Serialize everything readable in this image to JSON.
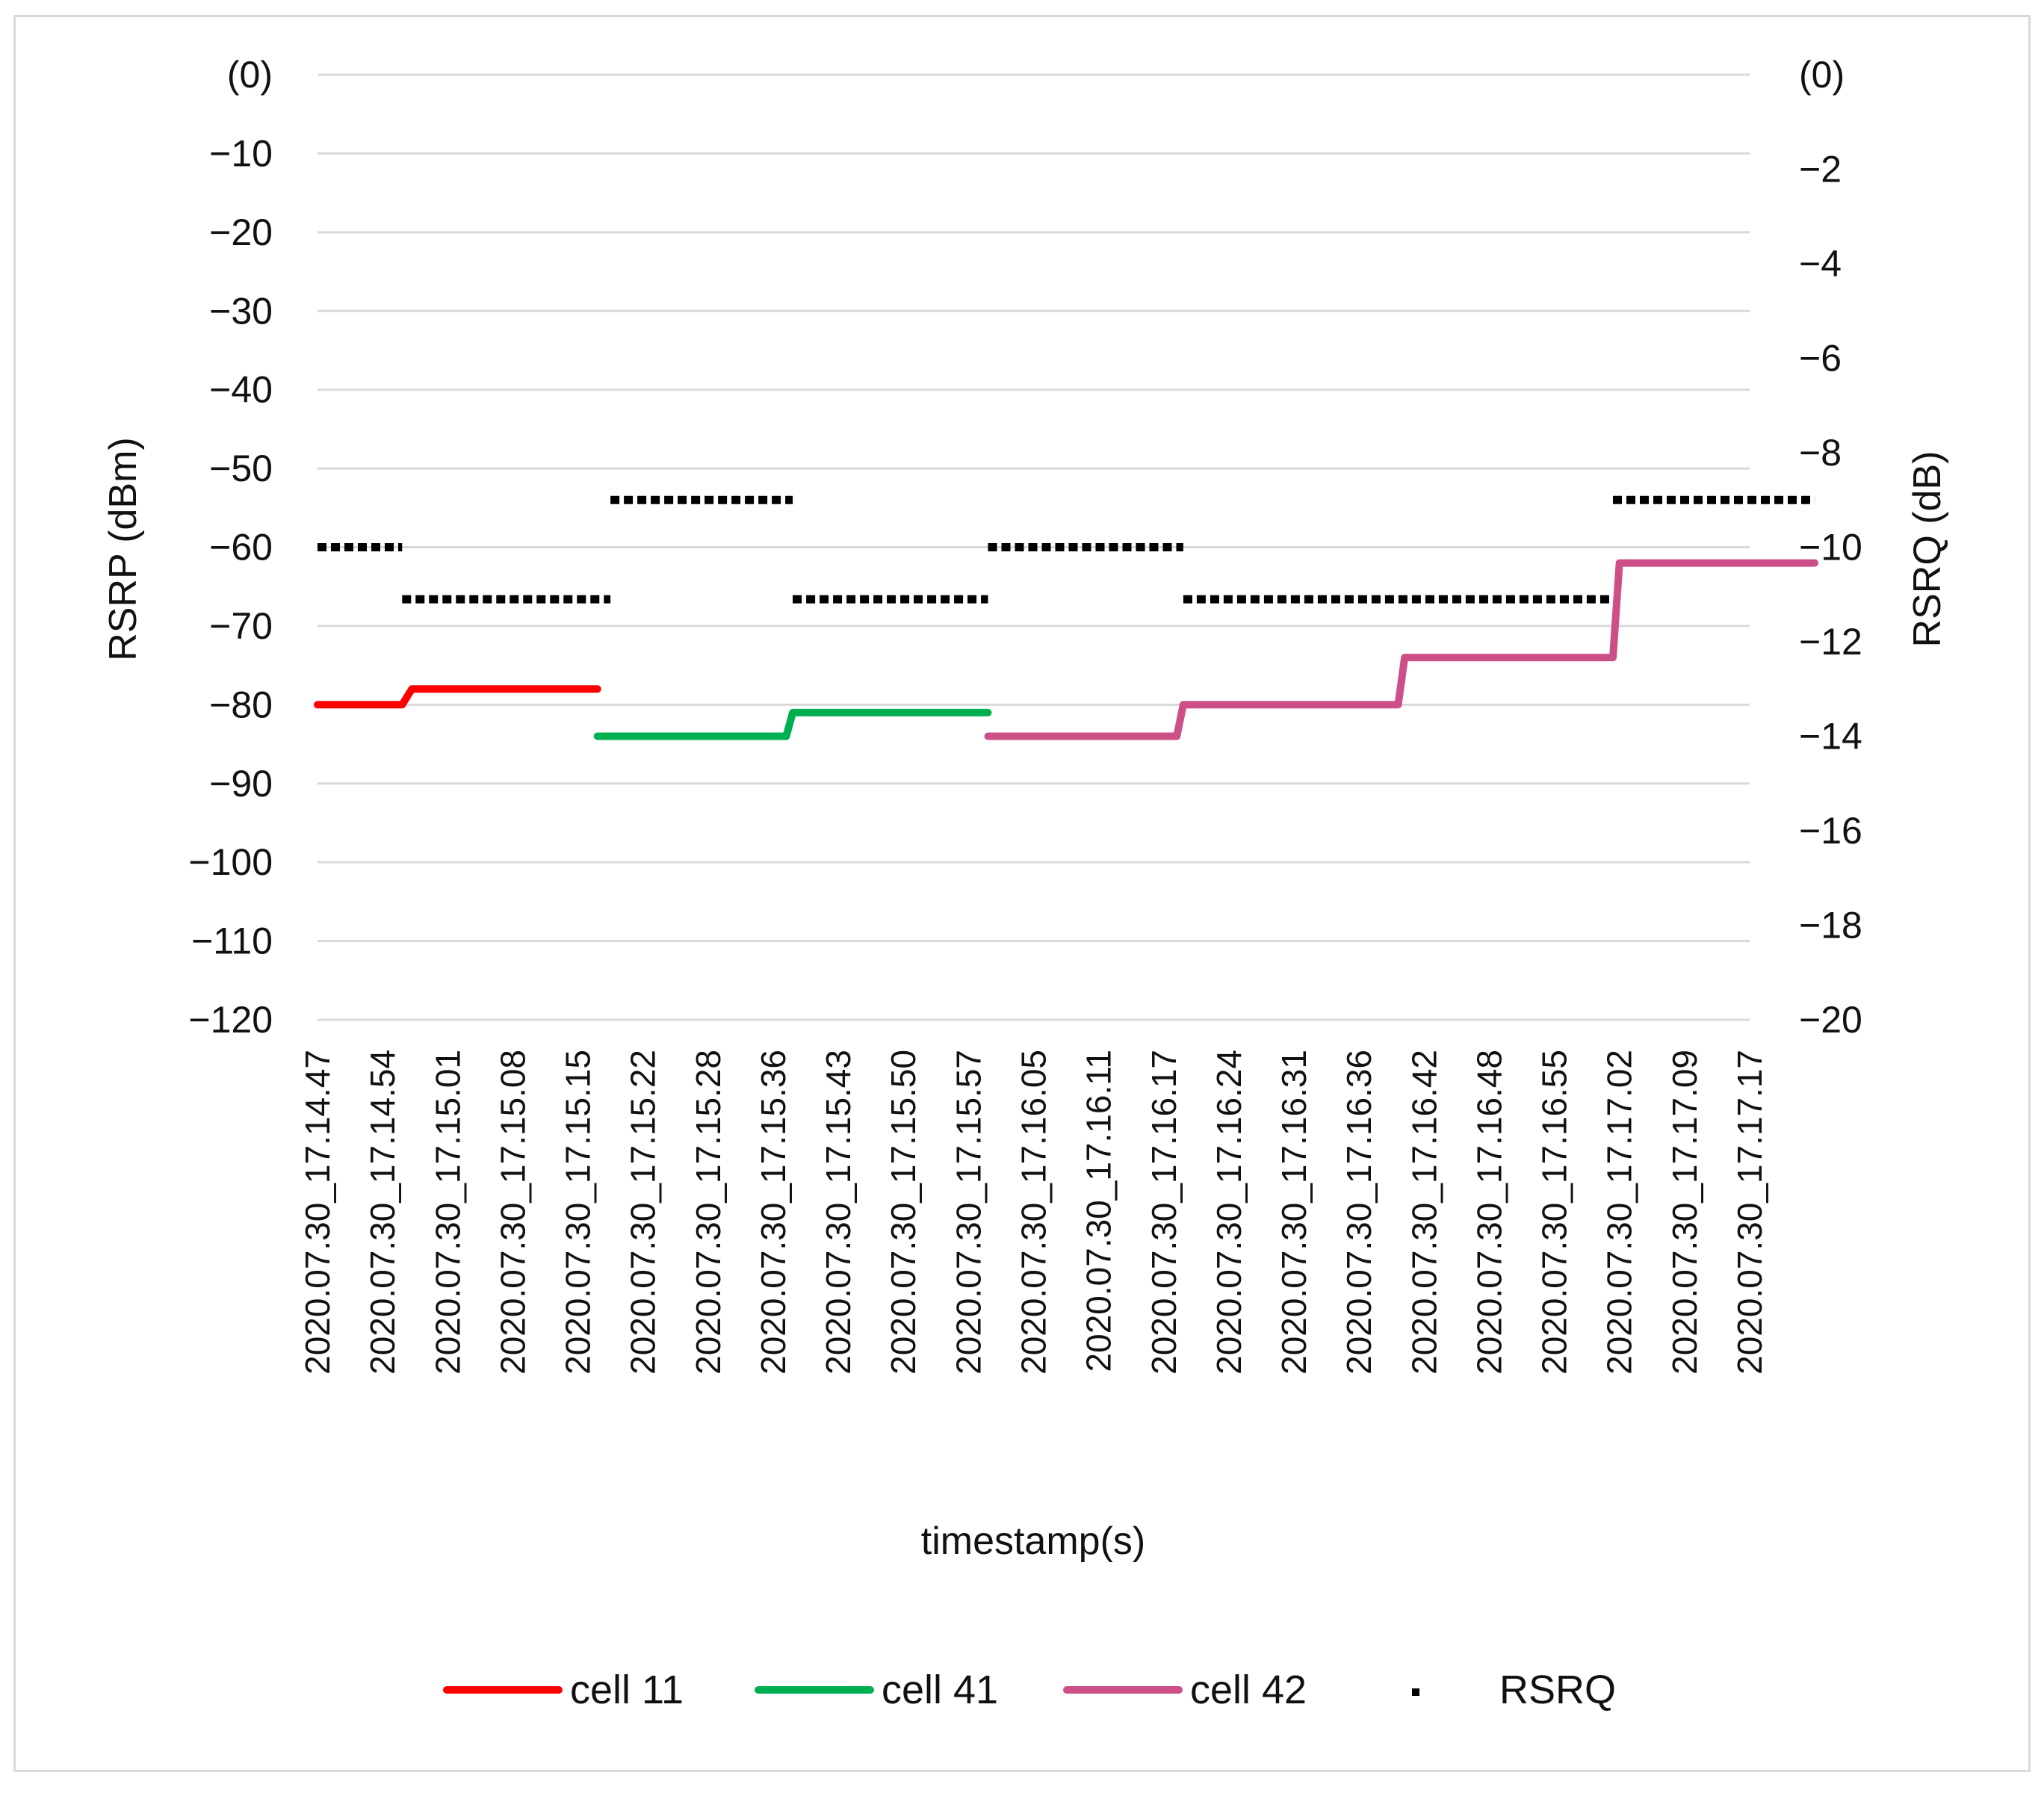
{
  "chart_data": {
    "type": "line",
    "xlabel": "timestamp(s)",
    "ylabel": "RSRP (dBm)",
    "y2label": "RSRQ (dB)",
    "ylim": [
      -120,
      0
    ],
    "y2lim": [
      -20,
      0
    ],
    "grid": true,
    "legend_position": "bottom",
    "yticks": [
      "(0)",
      "−10",
      "−20",
      "−30",
      "−40",
      "−50",
      "−60",
      "−70",
      "−80",
      "−90",
      "−100",
      "−110",
      "−120"
    ],
    "y2ticks": [
      "(0)",
      "−2",
      "−4",
      "−6",
      "−8",
      "−10",
      "−12",
      "−14",
      "−16",
      "−18",
      "−20"
    ],
    "categories": [
      "2020.07.30_17.14.47",
      "2020.07.30_17.14.54",
      "2020.07.30_17.15.01",
      "2020.07.30_17.15.08",
      "2020.07.30_17.15.15",
      "2020.07.30_17.15.22",
      "2020.07.30_17.15.28",
      "2020.07.30_17.15.36",
      "2020.07.30_17.15.43",
      "2020.07.30_17.15.50",
      "2020.07.30_17.15.57",
      "2020.07.30_17.16.05",
      "2020.07.30_17.16.11",
      "2020.07.30_17.16.17",
      "2020.07.30_17.16.24",
      "2020.07.30_17.16.31",
      "2020.07.30_17.16.36",
      "2020.07.30_17.16.42",
      "2020.07.30_17.16.48",
      "2020.07.30_17.16.55",
      "2020.07.30_17.17.02",
      "2020.07.30_17.17.09",
      "2020.07.30_17.17.17"
    ],
    "rsrp_series": [
      {
        "name": "cell 11",
        "color": "#ff0000",
        "points": [
          [
            0,
            -80
          ],
          [
            1.3,
            -80
          ],
          [
            1.45,
            -78
          ],
          [
            4.3,
            -78
          ]
        ]
      },
      {
        "name": "cell 41",
        "color": "#00b050",
        "points": [
          [
            4.3,
            -84
          ],
          [
            7.2,
            -84
          ],
          [
            7.3,
            -81
          ],
          [
            10.3,
            -81
          ]
        ]
      },
      {
        "name": "cell 42",
        "color": "#cc4f88",
        "points": [
          [
            10.3,
            -84
          ],
          [
            13.2,
            -84
          ],
          [
            13.3,
            -80
          ],
          [
            16.6,
            -80
          ],
          [
            16.7,
            -74
          ],
          [
            19.9,
            -74
          ],
          [
            20.0,
            -62
          ],
          [
            23.0,
            -62
          ]
        ]
      }
    ],
    "rsrq_series": {
      "name": "RSRQ",
      "color": "#000000",
      "segments": [
        {
          "from": 0,
          "to": 1.3,
          "value": -10
        },
        {
          "from": 1.3,
          "to": 4.5,
          "value": -11.1
        },
        {
          "from": 4.5,
          "to": 7.3,
          "value": -9
        },
        {
          "from": 7.3,
          "to": 10.3,
          "value": -11.1
        },
        {
          "from": 10.3,
          "to": 13.3,
          "value": -10
        },
        {
          "from": 13.3,
          "to": 19.9,
          "value": -11.1
        },
        {
          "from": 19.9,
          "to": 23.0,
          "value": -9
        }
      ]
    }
  }
}
